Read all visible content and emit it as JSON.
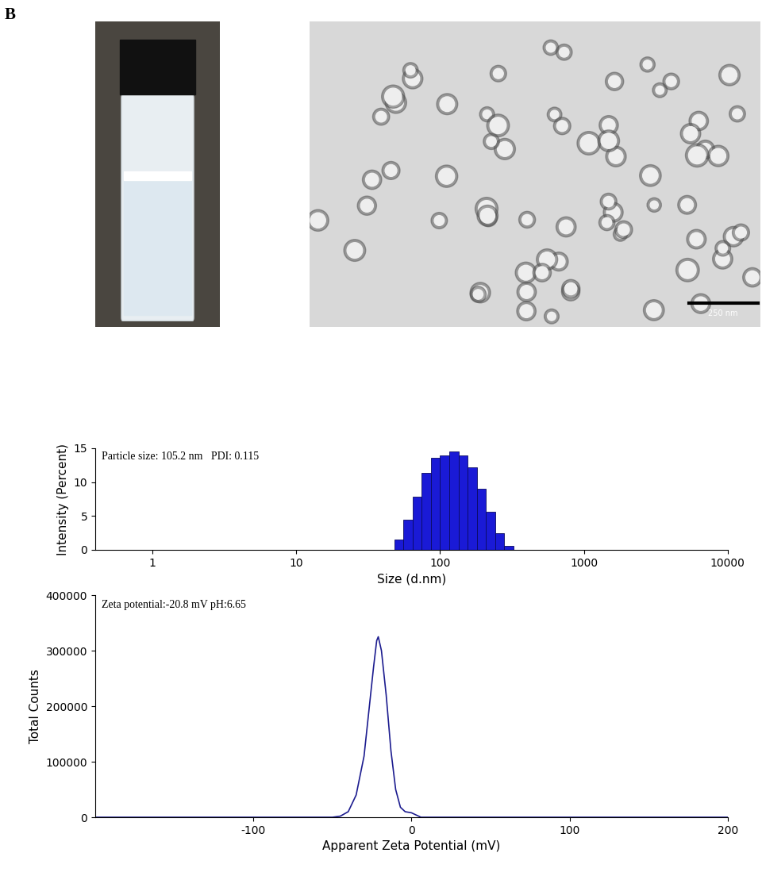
{
  "panel_label": "B",
  "tem_image": {
    "scale_bar_label": "250 nm"
  },
  "chart_data": [
    {
      "type": "histogram",
      "annotation": "Particle size: 105.2 nm   PDI: 0.115",
      "x_label": "Size (d.nm)",
      "y_label": "Intensity (Percent)",
      "bins": [
        48.0,
        55.6,
        64.4,
        74.6,
        86.4,
        100.0,
        115.9,
        134.2,
        155.5,
        180.1,
        208.5,
        241.5,
        279.8,
        324.0
      ],
      "values": [
        1.5,
        4.4,
        7.8,
        11.4,
        13.6,
        14.0,
        14.5,
        14.0,
        12.2,
        9.0,
        5.6,
        2.5,
        0.6
      ],
      "color": "#1a1ad6",
      "log": "x",
      "xlim": [
        0.4,
        10000
      ],
      "xticks": [
        1,
        10,
        100,
        1000,
        10000
      ],
      "ylim": [
        0,
        15
      ],
      "yticks": [
        0,
        5,
        10,
        15
      ]
    },
    {
      "type": "line",
      "annotation": "Zeta potential:-20.8 mV pH:6.65",
      "x_label": "Apparent Zeta Potential (mV)",
      "y_label": "Total Counts",
      "x": [
        -200,
        -50,
        -45,
        -40,
        -35,
        -30,
        -27,
        -24,
        -22,
        -21,
        -19,
        -16,
        -13,
        -10,
        -7,
        -4,
        0,
        3,
        6,
        200
      ],
      "values": [
        0,
        0,
        2000,
        10000,
        40000,
        110000,
        190000,
        270000,
        318000,
        325000,
        300000,
        220000,
        120000,
        50000,
        18000,
        10000,
        8000,
        4000,
        0,
        0
      ],
      "color": "#1c1c8f",
      "xlim": [
        -200,
        200
      ],
      "xticks": [
        -100,
        0,
        100,
        200
      ],
      "ylim": [
        0,
        400000
      ],
      "yticks": [
        0,
        100000,
        200000,
        300000,
        400000
      ]
    }
  ]
}
